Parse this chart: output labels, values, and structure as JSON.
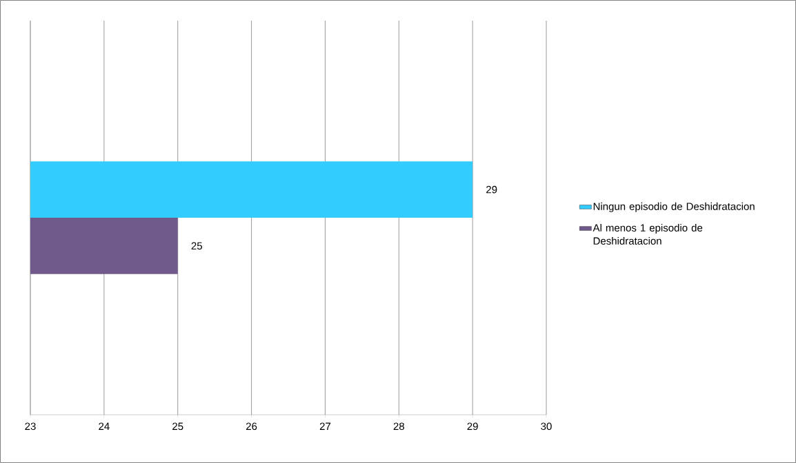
{
  "chart_data": {
    "type": "bar",
    "orientation": "horizontal",
    "categories": [
      null
    ],
    "series": [
      {
        "name": "Ningun episodio de Deshidratacion",
        "color": "#33ccff",
        "values": [
          29
        ]
      },
      {
        "name": "Al menos 1 episodio de Deshidratacion",
        "color": "#705a8c",
        "values": [
          25
        ]
      }
    ],
    "xlim": [
      23,
      30
    ],
    "xticks": [
      23,
      24,
      25,
      26,
      27,
      28,
      29,
      30
    ],
    "grid": "x",
    "legend": "right",
    "data_labels": true
  }
}
